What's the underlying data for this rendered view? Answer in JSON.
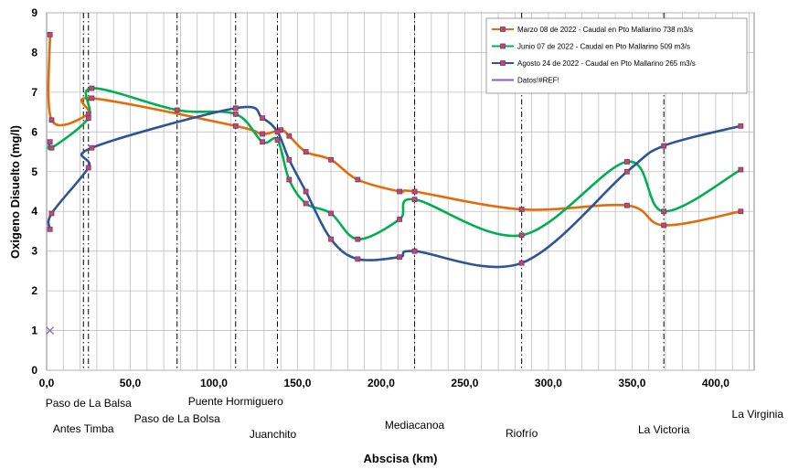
{
  "chart_data": {
    "type": "line",
    "xlabel": "Abscisa (km)",
    "ylabel": "Oxigeno Disuelto (mg/l)",
    "xlim": [
      0,
      423
    ],
    "ylim": [
      0,
      9
    ],
    "x_ticks": [
      0,
      50,
      100,
      150,
      200,
      250,
      300,
      350,
      400
    ],
    "x_tick_labels": [
      "0,0",
      "50,0",
      "100,0",
      "150,0",
      "200,0",
      "250,0",
      "300,0",
      "350,0",
      "400,0"
    ],
    "y_ticks": [
      0,
      1,
      2,
      3,
      4,
      5,
      6,
      7,
      8,
      9
    ],
    "y_tick_labels": [
      "0",
      "1",
      "2",
      "3",
      "4",
      "5",
      "6",
      "7",
      "8",
      "9"
    ],
    "grid": true,
    "legend_position": "top-right",
    "stations": [
      {
        "name": "Paso de La Balsa",
        "x": 25,
        "style": "dashdot"
      },
      {
        "name": "Antes Timba",
        "x": 22,
        "style": "dashdot"
      },
      {
        "name": "Paso de La Bolsa",
        "x": 78,
        "style": "dashdot"
      },
      {
        "name": "Puente Hormiguero",
        "x": 113,
        "style": "dashdot"
      },
      {
        "name": "Juanchito",
        "x": 138,
        "style": "dashdot"
      },
      {
        "name": "Mediacanoa",
        "x": 220,
        "style": "dashdot"
      },
      {
        "name": "Riofrío",
        "x": 284,
        "style": "dashdot"
      },
      {
        "name": "La Victoria",
        "x": 369,
        "style": "dashdot"
      },
      {
        "name": "La Virginia",
        "x": 423,
        "style": "none"
      }
    ],
    "series": [
      {
        "name": "Marzo 08 de 2022 - Caudal en Pto Mallarino 738 m3/s",
        "color": "#e36c0a",
        "x": [
          2,
          3,
          25,
          27,
          113,
          129,
          140,
          145,
          155,
          170,
          186,
          211,
          220,
          284,
          347,
          369,
          415
        ],
        "y": [
          8.45,
          6.3,
          6.45,
          6.85,
          6.15,
          5.95,
          6.05,
          5.9,
          5.5,
          5.3,
          4.8,
          4.5,
          4.5,
          4.05,
          4.15,
          3.65,
          4.0
        ]
      },
      {
        "name": "Junio 07 de 2022 - Caudal en Pto Mallarino 509 m3/s",
        "color": "#00b050",
        "x": [
          2,
          3,
          25,
          27,
          78,
          113,
          129,
          138,
          145,
          155,
          170,
          186,
          211,
          220,
          284,
          347,
          369,
          415
        ],
        "y": [
          5.75,
          5.6,
          6.35,
          7.1,
          6.55,
          6.45,
          5.75,
          5.8,
          4.8,
          4.2,
          3.95,
          3.3,
          3.8,
          4.3,
          3.4,
          5.25,
          4.0,
          5.05
        ]
      },
      {
        "name": "Agosto 24 de 2022 - Caudal en Pto Mallarino 265 m3/s",
        "color": "#2e5597",
        "x": [
          2,
          3,
          25,
          27,
          113,
          129,
          138,
          145,
          155,
          170,
          186,
          211,
          220,
          284,
          347,
          369,
          415
        ],
        "y": [
          3.55,
          3.95,
          5.1,
          5.6,
          6.6,
          6.35,
          6.0,
          5.3,
          4.5,
          3.3,
          2.8,
          2.85,
          3.0,
          2.7,
          5.0,
          5.65,
          6.15
        ]
      },
      {
        "name": "Datos!#REF!",
        "color": "#7f5fbf",
        "x": [
          2
        ],
        "y": [
          1.0
        ]
      }
    ]
  }
}
